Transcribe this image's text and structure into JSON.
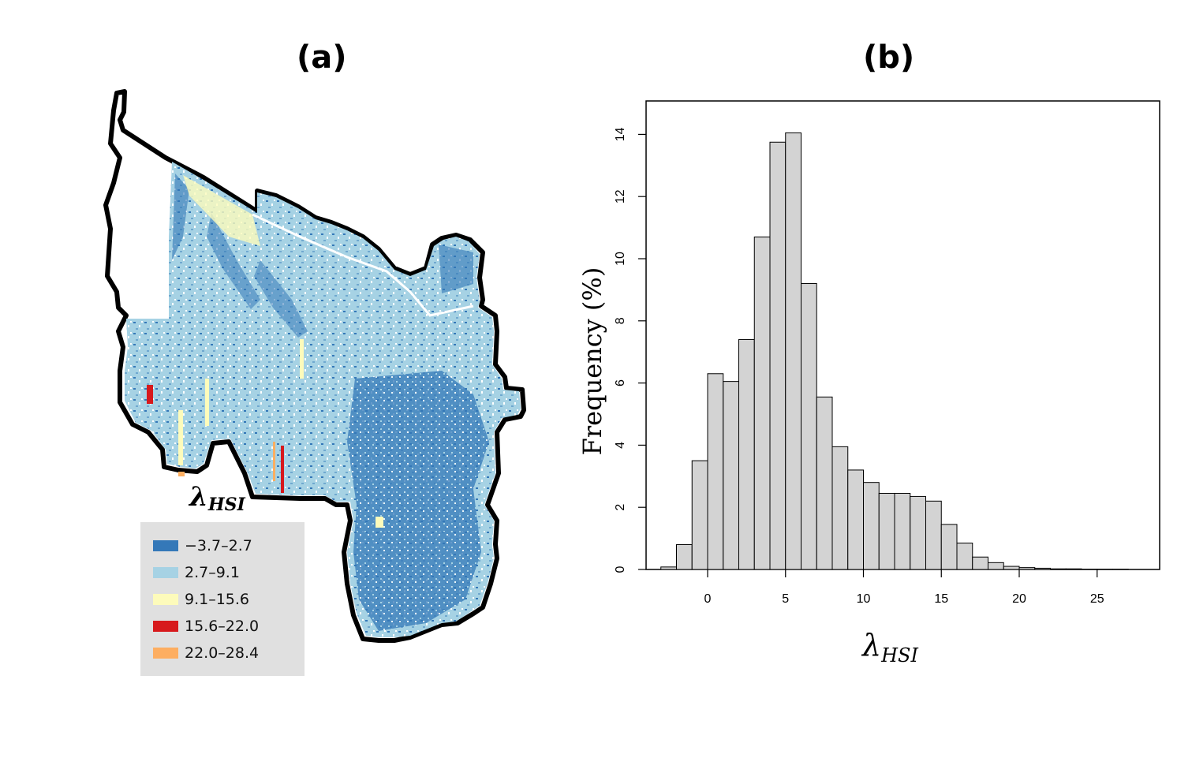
{
  "panels": {
    "a": {
      "label": "(a)"
    },
    "b": {
      "label": "(b)"
    }
  },
  "map": {
    "legend_title_main": "λ",
    "legend_title_sub": "HSI",
    "legend": [
      {
        "label": "−3.7–2.7",
        "color": "#3478b8"
      },
      {
        "label": "2.7–9.1",
        "color": "#a6d2e4"
      },
      {
        "label": "9.1–15.6",
        "color": "#fdfbbb"
      },
      {
        "label": "15.6–22.0",
        "color": "#d7191c"
      },
      {
        "label": "22.0–28.4",
        "color": "#fdae61"
      }
    ]
  },
  "chart_data": {
    "type": "bar",
    "title": "",
    "xlabel_main": "λ",
    "xlabel_sub": "HSI",
    "ylabel": "Frequency (%)",
    "bin_width": 1,
    "bin_start": -3,
    "values": [
      0.08,
      0.8,
      3.5,
      6.3,
      6.05,
      7.4,
      10.7,
      13.75,
      14.05,
      9.2,
      5.55,
      3.95,
      3.2,
      2.8,
      2.45,
      2.45,
      2.35,
      2.2,
      1.45,
      0.85,
      0.4,
      0.22,
      0.1,
      0.06,
      0.04,
      0.02,
      0.02,
      0.01,
      0.01,
      0.01
    ],
    "xlim": [
      -3.5,
      28
    ],
    "ylim": [
      0,
      15
    ],
    "xticks": [
      0,
      5,
      10,
      15,
      20,
      25
    ],
    "yticks": [
      0,
      2,
      4,
      6,
      8,
      10,
      12,
      14
    ],
    "bar_color": "#d3d3d3",
    "edge_color": "#000000"
  }
}
